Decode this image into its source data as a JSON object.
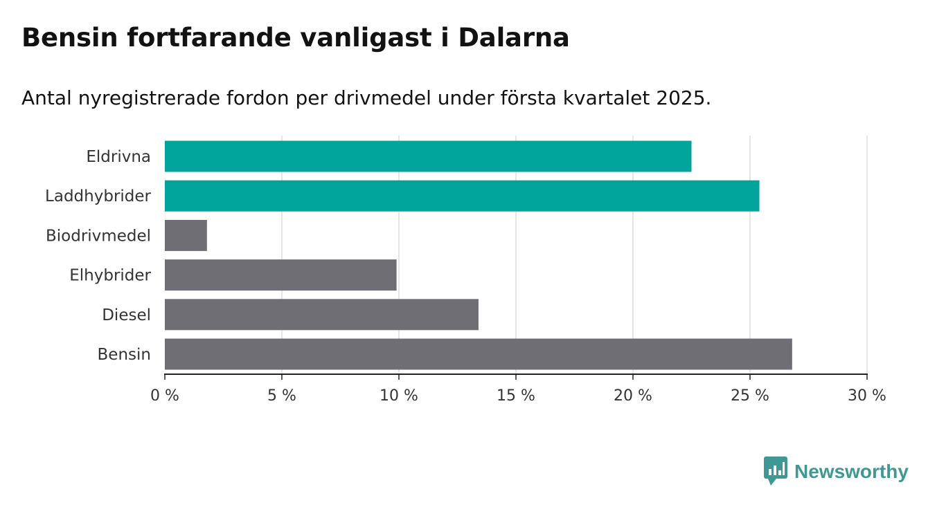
{
  "title": "Bensin fortfarande vanligast i Dalarna",
  "subtitle": "Antal nyregistrerade fordon per drivmedel under första kvartalet 2025.",
  "brand": {
    "name": "Newsworthy",
    "color": "#3f9892"
  },
  "colors": {
    "highlight": "#00a49a",
    "default": "#6f6e74",
    "grid": "#dddddd",
    "axis": "#222222",
    "text": "#333333"
  },
  "chart_data": {
    "type": "bar",
    "orientation": "horizontal",
    "title": "Bensin fortfarande vanligast i Dalarna",
    "subtitle": "Antal nyregistrerade fordon per drivmedel under första kvartalet 2025.",
    "categories": [
      "Eldrivna",
      "Laddhybrider",
      "Biodrivmedel",
      "Elhybrider",
      "Diesel",
      "Bensin"
    ],
    "values": [
      22.5,
      25.4,
      1.8,
      9.9,
      13.4,
      26.8
    ],
    "highlighted": [
      true,
      true,
      false,
      false,
      false,
      false
    ],
    "xlim": [
      0,
      30
    ],
    "xticks": [
      0,
      5,
      10,
      15,
      20,
      25,
      30
    ],
    "tick_labels": [
      "0 %",
      "5 %",
      "10 %",
      "15 %",
      "20 %",
      "25 %",
      "30 %"
    ],
    "unit": "%",
    "grid": true
  }
}
